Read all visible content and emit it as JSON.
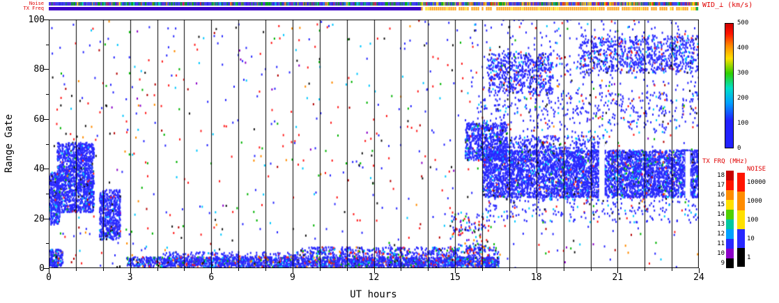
{
  "chart_data": {
    "type": "heatmap",
    "title": "",
    "xlabel": "UT hours",
    "ylabel": "Range Gate",
    "xlim": [
      0,
      24
    ],
    "ylim": [
      0,
      100
    ],
    "x_ticks": [
      0,
      3,
      6,
      9,
      12,
      15,
      18,
      21,
      24
    ],
    "y_ticks": [
      0,
      20,
      40,
      60,
      80,
      100
    ],
    "grid": {
      "vertical_line_every_hour": true,
      "legend_position": "right"
    },
    "colorbar": {
      "label": "WID_⊥ (km/s)",
      "min": 0,
      "max": 500,
      "ticks": [
        500,
        400,
        300,
        200,
        100,
        0
      ],
      "gradient_stops": [
        [
          "#2121ff",
          0
        ],
        [
          "#2121ff",
          22
        ],
        [
          "#00a0ff",
          36
        ],
        [
          "#00e0c8",
          48
        ],
        [
          "#30d000",
          60
        ],
        [
          "#ffe000",
          72
        ],
        [
          "#ff8c00",
          82
        ],
        [
          "#ff1400",
          92
        ],
        [
          "#d00000",
          100
        ]
      ]
    },
    "legend_txfrq": {
      "label": "TX FRQ (MHz)",
      "ticks": [
        18,
        17,
        16,
        15,
        14,
        13,
        12,
        11,
        10,
        9
      ],
      "colors": [
        "#c80000",
        "#ff1400",
        "#ff8c00",
        "#ffe000",
        "#50d000",
        "#00c8a0",
        "#00a0ff",
        "#2828ff",
        "#8c00c8",
        "#000000"
      ]
    },
    "legend_noise": {
      "label": "NOISE",
      "ticks": [
        "10000",
        "1000",
        "100",
        "10",
        "1"
      ],
      "colors": [
        "#ff1400",
        "#ff8c00",
        "#ffe000",
        "#2828ff",
        "#000000"
      ]
    },
    "strips": {
      "noise": {
        "label": "Noise",
        "base_color": "#4343ee",
        "tick_count": 650,
        "palette_left": [
          [
            "#00b400",
            0.38
          ],
          [
            "#2a2ae6",
            0.22
          ],
          [
            "#7a1fd2",
            0.12
          ],
          [
            "#00d2d2",
            0.1
          ],
          [
            "#ff1e1e",
            0.07
          ],
          [
            "#ffe000",
            0.06
          ],
          [
            "#ff8c00",
            0.05
          ]
        ],
        "palette_right": [
          [
            "#00b400",
            0.22
          ],
          [
            "#ffe000",
            0.2
          ],
          [
            "#ff8c00",
            0.18
          ],
          [
            "#ff1e1e",
            0.14
          ],
          [
            "#2a2ae6",
            0.12
          ],
          [
            "#7a1fd2",
            0.07
          ],
          [
            "#00d2d2",
            0.07
          ]
        ]
      },
      "txfreq": {
        "label": "TX Freq",
        "segments": [
          {
            "x": [
              0,
              13.75
            ],
            "style": "solid",
            "color": "#3c00c8"
          },
          {
            "x": [
              13.75,
              24
            ],
            "style": "dashed",
            "color": "#ff9b00",
            "alt_color": "#ffe000"
          }
        ],
        "end_tick_color": "#00b450"
      }
    },
    "palettes": {
      "dense": [
        [
          "#2a2aff",
          0.9
        ],
        [
          "#00c8ff",
          0.05
        ],
        [
          "#141414",
          0.02
        ],
        [
          "#ff1e1e",
          0.015
        ],
        [
          "#00b400",
          0.015
        ]
      ],
      "band": [
        [
          "#2a2aff",
          0.8
        ],
        [
          "#00c8ff",
          0.07
        ],
        [
          "#ff1e1e",
          0.05
        ],
        [
          "#00b400",
          0.04
        ],
        [
          "#141414",
          0.02
        ],
        [
          "#ff8c00",
          0.02
        ]
      ],
      "sparse": [
        [
          "#2a2aff",
          0.85
        ],
        [
          "#00c8ff",
          0.08
        ],
        [
          "#ff1e1e",
          0.04
        ],
        [
          "#141414",
          0.03
        ]
      ],
      "mix": [
        [
          "#2a2aff",
          0.34
        ],
        [
          "#ff1e1e",
          0.21
        ],
        [
          "#00c8ff",
          0.11
        ],
        [
          "#00b400",
          0.1
        ],
        [
          "#141414",
          0.09
        ],
        [
          "#b40000",
          0.06
        ],
        [
          "#ff8c00",
          0.05
        ],
        [
          "#8c00c8",
          0.04
        ]
      ]
    },
    "regions": [
      {
        "name": "dawn-blob-edge",
        "x": [
          0.0,
          0.38
        ],
        "y": [
          17,
          38
        ],
        "points": 320,
        "palette": "dense"
      },
      {
        "name": "dawn-blob-main",
        "x": [
          0.28,
          1.65
        ],
        "y": [
          22,
          50
        ],
        "points": 1450,
        "palette": "dense"
      },
      {
        "name": "dawn-blob-tail",
        "x": [
          1.85,
          2.62
        ],
        "y": [
          11,
          31
        ],
        "points": 520,
        "palette": "dense"
      },
      {
        "name": "bottom-left-patch",
        "x": [
          0.0,
          0.5
        ],
        "y": [
          0,
          7
        ],
        "points": 170,
        "palette": "band"
      },
      {
        "name": "near-range-band",
        "x": [
          2.85,
          16.6
        ],
        "y": [
          0,
          4
        ],
        "points": 1900,
        "palette": "band"
      },
      {
        "name": "near-range-band-2",
        "x": [
          4.2,
          9.2
        ],
        "y": [
          0,
          6
        ],
        "points": 420,
        "palette": "band"
      },
      {
        "name": "near-range-band-3",
        "x": [
          9.3,
          16.6
        ],
        "y": [
          0,
          8
        ],
        "points": 980,
        "palette": "band"
      },
      {
        "name": "dusk-riser",
        "x": [
          15.35,
          16.9
        ],
        "y": [
          43,
          58
        ],
        "points": 680,
        "palette": "dense"
      },
      {
        "name": "evening-band",
        "x": [
          16.0,
          24.0
        ],
        "y": [
          28,
          47
        ],
        "points": 5200,
        "palette": "dense"
      },
      {
        "name": "evening-band-top",
        "x": [
          16.5,
          20.5
        ],
        "y": [
          46,
          53
        ],
        "points": 320,
        "palette": "dense"
      },
      {
        "name": "high-gate-patch-early",
        "x": [
          16.2,
          18.6
        ],
        "y": [
          70,
          86
        ],
        "points": 540,
        "palette": "sparse"
      },
      {
        "name": "high-gate-patch-late",
        "x": [
          19.6,
          24.0
        ],
        "y": [
          78,
          93
        ],
        "points": 760,
        "palette": "sparse"
      },
      {
        "name": "evening-mid-speckle",
        "x": [
          15.8,
          24.0
        ],
        "y": [
          54,
          70
        ],
        "points": 290,
        "palette": "sparse"
      },
      {
        "name": "evening-high-speckle",
        "x": [
          15.5,
          24.0
        ],
        "y": [
          60,
          100
        ],
        "points": 400,
        "palette": "sparse"
      },
      {
        "name": "evening-low-speckle",
        "x": [
          16.0,
          24.0
        ],
        "y": [
          18,
          28
        ],
        "points": 240,
        "palette": "sparse"
      },
      {
        "name": "pre-dusk-speckle",
        "x": [
          14.8,
          16.3
        ],
        "y": [
          6,
          22
        ],
        "points": 120,
        "palette": "mix"
      }
    ],
    "holes": [
      {
        "x": [
          20.32,
          20.52
        ],
        "y": [
          28,
          50
        ]
      },
      {
        "x": [
          23.5,
          23.68
        ],
        "y": [
          28,
          47
        ]
      }
    ],
    "background_scatter": {
      "points": 820,
      "palette": "mix"
    }
  }
}
